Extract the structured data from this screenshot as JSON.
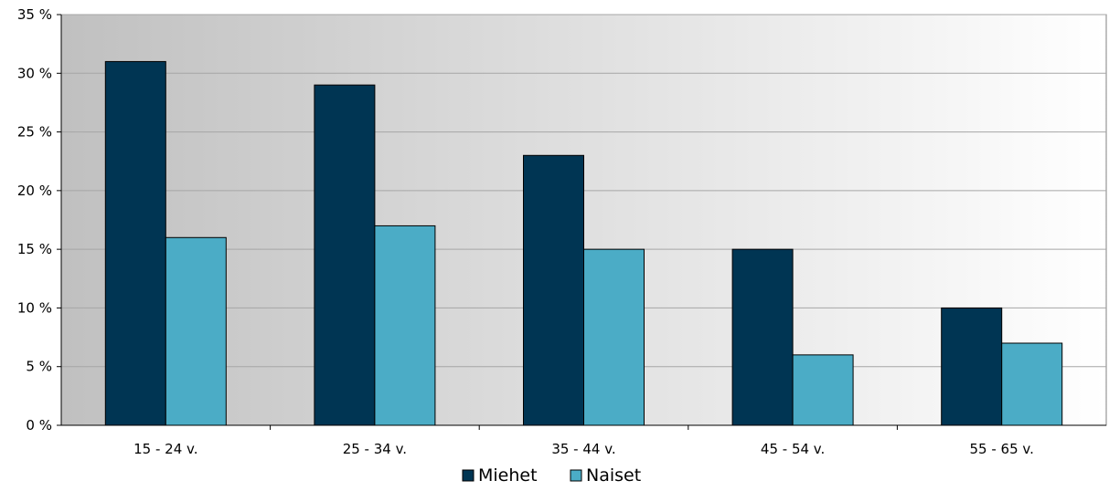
{
  "chart_data": {
    "type": "bar",
    "categories": [
      "15 - 24 v.",
      "25 - 34 v.",
      "35 - 44 v.",
      "45 - 54 v.",
      "55 - 65 v."
    ],
    "series": [
      {
        "name": "Miehet",
        "values": [
          31,
          29,
          23,
          15,
          10
        ],
        "color": "#003553"
      },
      {
        "name": "Naiset",
        "values": [
          16,
          17,
          15,
          6,
          7
        ],
        "color": "#4bacc6"
      }
    ],
    "y_ticks": [
      "0 %",
      "5 %",
      "10 %",
      "15 %",
      "20 %",
      "25 %",
      "30 %",
      "35 %"
    ],
    "ylim": [
      0,
      35
    ],
    "y_step": 5,
    "grid": true,
    "legend_position": "bottom",
    "plot_background_gradient": [
      "#c0c0c0",
      "#ffffff"
    ],
    "gridline_color": "#a6a6a6"
  }
}
